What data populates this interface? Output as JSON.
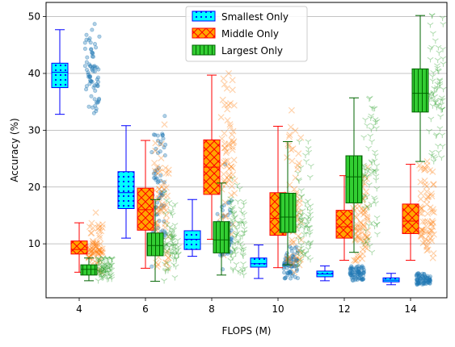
{
  "chart_data": {
    "type": "box",
    "xlabel": "FLOPS (M)",
    "ylabel": "Accuracy (%)",
    "categories": [
      "4",
      "6",
      "8",
      "10",
      "12",
      "14"
    ],
    "ylim": [
      0.5,
      52.5
    ],
    "yticks": [
      10,
      20,
      30,
      40,
      50
    ],
    "grid": "y",
    "legend_position": "top-center",
    "series": [
      {
        "name": "Smallest Only",
        "fill": "#00ffff",
        "edge": "#0000ff",
        "hatch": "dots",
        "scatter_color": "#1f77b4",
        "scatter_marker": "circle",
        "boxes": [
          {
            "category": "4",
            "whislo": 32.8,
            "q1": 37.5,
            "med": 40.2,
            "q3": 41.8,
            "whishi": 47.7,
            "points": [
              33,
              48.7
            ]
          },
          {
            "category": "6",
            "whislo": 11.0,
            "q1": 16.2,
            "med": 19.0,
            "q3": 22.7,
            "whishi": 30.8,
            "points": [
              6,
              32.5
            ]
          },
          {
            "category": "8",
            "whislo": 7.8,
            "q1": 9.0,
            "med": 10.8,
            "q3": 12.3,
            "whishi": 17.8,
            "points": [
              5.5,
              24
            ]
          },
          {
            "category": "10",
            "whislo": 3.9,
            "q1": 5.9,
            "med": 6.5,
            "q3": 7.5,
            "whishi": 9.8,
            "points": [
              4.5,
              9.5
            ]
          },
          {
            "category": "12",
            "whislo": 3.5,
            "q1": 4.2,
            "med": 4.7,
            "q3": 5.2,
            "whishi": 6.1,
            "points": [
              3.8,
              5.8
            ]
          },
          {
            "category": "14",
            "whislo": 2.8,
            "q1": 3.3,
            "med": 3.6,
            "q3": 4.0,
            "whishi": 4.8,
            "points": [
              3.0,
              4.8
            ]
          }
        ]
      },
      {
        "name": "Middle Only",
        "fill": "#ffa500",
        "edge": "#ff0000",
        "hatch": "cross",
        "scatter_color": "#ff7f0e",
        "scatter_marker": "x",
        "boxes": [
          {
            "category": "4",
            "whislo": 5.0,
            "q1": 8.2,
            "med": 9.0,
            "q3": 10.5,
            "whishi": 13.7,
            "points": [
              5,
              15.5
            ]
          },
          {
            "category": "6",
            "whislo": 5.7,
            "q1": 12.4,
            "med": 16.0,
            "q3": 19.8,
            "whishi": 28.2,
            "points": [
              6,
              31
            ]
          },
          {
            "category": "8",
            "whislo": 10.8,
            "q1": 18.7,
            "med": 23.5,
            "q3": 28.3,
            "whishi": 39.7,
            "points": [
              8,
              40
            ]
          },
          {
            "category": "10",
            "whislo": 5.8,
            "q1": 11.5,
            "med": 14.5,
            "q3": 19.0,
            "whishi": 30.7,
            "points": [
              5,
              33.5
            ]
          },
          {
            "category": "12",
            "whislo": 7.1,
            "q1": 11.0,
            "med": 13.0,
            "q3": 15.9,
            "whishi": 22.0,
            "points": [
              7,
              23.5
            ]
          },
          {
            "category": "14",
            "whislo": 7.1,
            "q1": 11.8,
            "med": 14.0,
            "q3": 17.0,
            "whishi": 24.0,
            "points": [
              7.5,
              24.5
            ]
          }
        ]
      },
      {
        "name": "Largest Only",
        "fill": "#32cd32",
        "edge": "#006400",
        "hatch": "vlines",
        "scatter_color": "#2ca02c",
        "scatter_marker": "tri",
        "boxes": [
          {
            "category": "4",
            "whislo": 3.5,
            "q1": 4.5,
            "med": 5.5,
            "q3": 6.3,
            "whishi": 7.5,
            "points": [
              3.5,
              7.5
            ]
          },
          {
            "category": "6",
            "whislo": 3.4,
            "q1": 7.9,
            "med": 9.7,
            "q3": 11.9,
            "whishi": 17.8,
            "points": [
              3.5,
              19
            ]
          },
          {
            "category": "8",
            "whislo": 4.5,
            "q1": 8.4,
            "med": 10.7,
            "q3": 13.9,
            "whishi": 20.7,
            "points": [
              4.5,
              21.5
            ]
          },
          {
            "category": "10",
            "whislo": 6.3,
            "q1": 12.0,
            "med": 14.7,
            "q3": 18.9,
            "whishi": 28.0,
            "points": [
              6,
              28
            ]
          },
          {
            "category": "12",
            "whislo": 8.5,
            "q1": 17.2,
            "med": 21.8,
            "q3": 25.5,
            "whishi": 35.7,
            "points": [
              8.5,
              35.5
            ]
          },
          {
            "category": "14",
            "whislo": 24.5,
            "q1": 33.2,
            "med": 36.5,
            "q3": 40.8,
            "whishi": 50.2,
            "points": [
              24.5,
              50.2
            ]
          }
        ]
      }
    ]
  }
}
